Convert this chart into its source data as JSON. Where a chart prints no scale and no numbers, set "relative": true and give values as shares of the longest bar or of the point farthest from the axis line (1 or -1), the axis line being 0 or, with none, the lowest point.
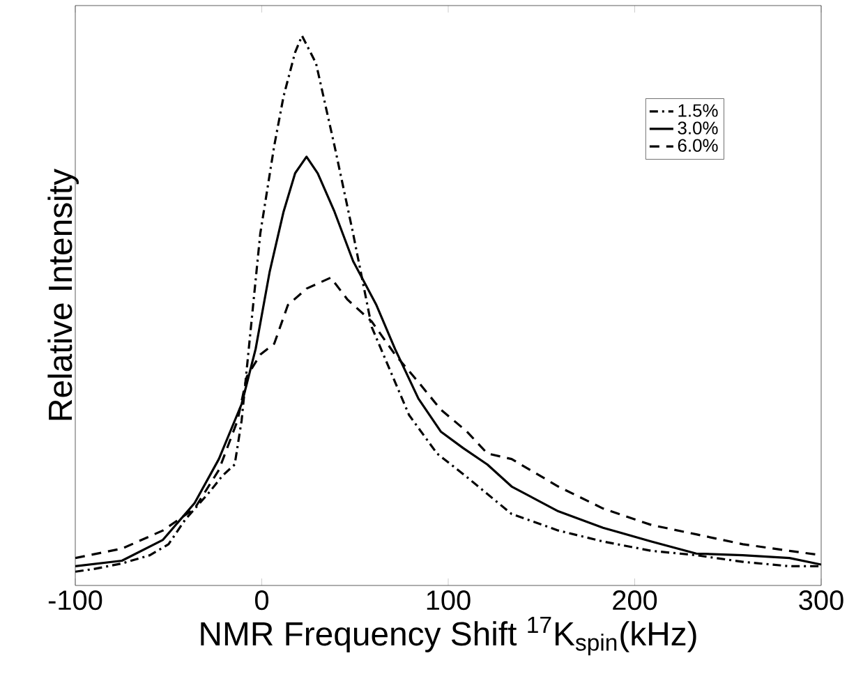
{
  "chart_data": {
    "type": "line",
    "relative": true,
    "xlabel": "NMR Frequency Shift $^{17}$K$_{spin}$(kHz)",
    "ylabel": "Relative Intensity",
    "xlim": [
      -100,
      300
    ],
    "xticks": [
      -100,
      0,
      100,
      200,
      300
    ],
    "legend": "top right",
    "grid": false,
    "series": [
      {
        "name": "1.5%",
        "color": "#000000",
        "line_style": "dashdot",
        "x": [
          -100,
          -90,
          -75,
          -60,
          -50,
          -41,
          -28,
          -21,
          -14.5,
          -10.8,
          -5.8,
          -0.8,
          6.7,
          11.7,
          17.9,
          21.6,
          29.1,
          39,
          49,
          59,
          69,
          79,
          94,
          109,
          134,
          159,
          183,
          209,
          233,
          258,
          283,
          300
        ],
        "values": [
          0.025,
          0.03,
          0.04,
          0.055,
          0.075,
          0.12,
          0.17,
          0.2,
          0.22,
          0.3,
          0.47,
          0.64,
          0.8,
          0.89,
          0.97,
          1,
          0.95,
          0.8,
          0.64,
          0.47,
          0.39,
          0.31,
          0.24,
          0.2,
          0.13,
          0.1,
          0.08,
          0.063,
          0.055,
          0.043,
          0.035,
          0.035
        ]
      },
      {
        "name": "3.0%",
        "color": "#000000",
        "line_style": "solid",
        "x": [
          -100,
          -75,
          -53,
          -36,
          -23,
          -10.8,
          -3.3,
          4.2,
          11.7,
          17.9,
          24,
          30,
          39,
          49,
          61.5,
          71.5,
          84,
          96,
          108,
          121,
          134,
          159,
          183,
          209,
          233,
          258,
          283,
          300
        ],
        "values": [
          0.035,
          0.045,
          0.083,
          0.15,
          0.23,
          0.33,
          0.43,
          0.57,
          0.68,
          0.75,
          0.78,
          0.75,
          0.68,
          0.59,
          0.51,
          0.43,
          0.34,
          0.28,
          0.25,
          0.22,
          0.18,
          0.135,
          0.105,
          0.08,
          0.058,
          0.055,
          0.05,
          0.038
        ]
      },
      {
        "name": "6.0%",
        "color": "#000000",
        "line_style": "dashed",
        "x": [
          -100,
          -75,
          -53,
          -36,
          -23,
          -13,
          -8,
          -0.8,
          6.7,
          14,
          24,
          37,
          46,
          59,
          71.5,
          84,
          96,
          110,
          121,
          134,
          159,
          183,
          209,
          233,
          258,
          283,
          300
        ],
        "values": [
          0.05,
          0.067,
          0.1,
          0.14,
          0.21,
          0.3,
          0.38,
          0.42,
          0.44,
          0.51,
          0.54,
          0.56,
          0.52,
          0.48,
          0.42,
          0.37,
          0.32,
          0.28,
          0.24,
          0.23,
          0.18,
          0.14,
          0.11,
          0.093,
          0.075,
          0.063,
          0.055
        ]
      }
    ]
  }
}
